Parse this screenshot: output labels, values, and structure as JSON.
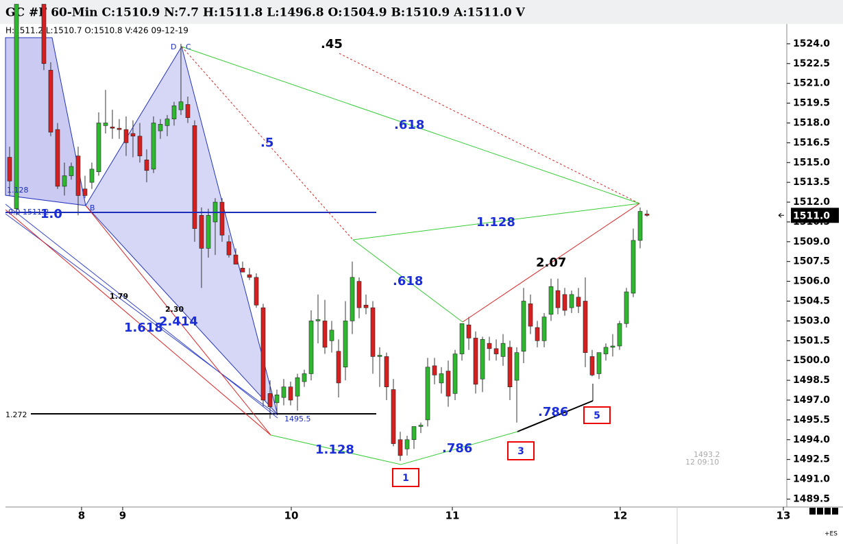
{
  "header": {
    "title": "GC #F 60-Min C:1510.9 N:7.7 H:1511.8 L:1496.8 O:1504.9 B:1510.9 A:1511.0 V",
    "info": "H:1511.2  L:1510.7  O:1510.8  V:426  09-12-19"
  },
  "chart_data": {
    "type": "candlestick",
    "up_color": "#2fb82f",
    "down_color": "#d42020",
    "x": [
      0,
      1,
      5,
      6,
      7,
      8,
      9,
      10,
      11,
      12,
      13,
      14,
      15,
      16,
      17,
      18,
      19,
      20,
      21,
      22,
      23,
      24,
      25,
      26,
      27,
      28,
      29,
      30,
      31,
      32,
      33,
      34,
      35,
      36,
      37,
      38,
      39,
      40,
      41,
      42,
      43,
      44,
      45,
      46,
      47,
      48,
      49,
      50,
      51,
      52,
      53,
      54,
      55,
      56,
      57,
      58,
      59,
      60,
      61,
      62,
      63,
      64,
      65,
      66,
      67,
      68,
      69,
      70,
      71,
      72,
      73,
      74,
      75,
      76,
      77,
      78,
      79,
      80,
      81,
      82,
      83,
      84,
      85,
      86,
      87,
      88,
      89,
      90,
      91,
      92,
      93
    ],
    "open": [
      1515.4,
      1511.5,
      1527,
      1522,
      1517.5,
      1513.2,
      1514,
      1515.5,
      1513,
      1513.5,
      1514.3,
      1517.8,
      1517.7,
      1517.6,
      1517.5,
      1517.2,
      1517,
      1515.2,
      1514.5,
      1517.4,
      1517.8,
      1518.3,
      1519,
      1519.4,
      1517.8,
      1511,
      1508.5,
      1510.5,
      1512,
      1509,
      1508,
      1507,
      1506.5,
      1506.3,
      1504,
      1497.5,
      1496.8,
      1497.2,
      1498,
      1497.3,
      1498.4,
      1499,
      1503,
      1503,
      1501.5,
      1500.7,
      1499.5,
      1503,
      1506,
      1504.2,
      1504,
      1500.3,
      1500.3,
      1497.8,
      1494,
      1493.3,
      1494,
      1495,
      1495.5,
      1499.6,
      1498.3,
      1499.2,
      1497.5,
      1500.5,
      1502.7,
      1501.7,
      1498.6,
      1501.3,
      1500.9,
      1500.3,
      1501,
      1498.5,
      1500.7,
      1504.3,
      1502.5,
      1501.5,
      1503.5,
      1505.3,
      1505,
      1504,
      1504.8,
      1504.5,
      1500.3,
      1499,
      1500.5,
      1501,
      1501.1,
      1502.8,
      1505.1,
      1509.1,
      1511.1
    ],
    "high": [
      1516.2,
      1527,
      1527,
      1522.6,
      1518,
      1515,
      1515,
      1516.2,
      1514,
      1515,
      1518.8,
      1520.5,
      1519,
      1518.3,
      1518.5,
      1518.2,
      1518,
      1516,
      1518.5,
      1518.3,
      1518.6,
      1519.6,
      1524,
      1520,
      1518.2,
      1511.6,
      1511.5,
      1512.3,
      1512.3,
      1509.5,
      1508.5,
      1507.5,
      1507,
      1506.6,
      1504.3,
      1498.5,
      1497.8,
      1498.6,
      1498.4,
      1499,
      1499.3,
      1503.8,
      1505,
      1504.6,
      1503,
      1501.6,
      1504.5,
      1507.5,
      1506.3,
      1505,
      1504.5,
      1501,
      1500.6,
      1498.6,
      1494.6,
      1494.3,
      1494.8,
      1495.3,
      1500.2,
      1500.2,
      1499.5,
      1500,
      1500.8,
      1502.8,
      1503.3,
      1502.2,
      1501.8,
      1501.8,
      1501.6,
      1502,
      1501.5,
      1501,
      1505.5,
      1505,
      1503,
      1503.6,
      1506.2,
      1506.2,
      1505.5,
      1505.3,
      1505.5,
      1506.3,
      1500.8,
      1500.6,
      1501.3,
      1502,
      1503,
      1505.5,
      1510,
      1511.6,
      1511.4
    ],
    "low": [
      1512.5,
      1511,
      1522,
      1517,
      1513,
      1512.5,
      1513.7,
      1511,
      1512.3,
      1513,
      1514,
      1517.2,
      1516.8,
      1516.8,
      1515.5,
      1515.4,
      1515,
      1513.5,
      1514.2,
      1516.8,
      1517,
      1517.8,
      1518.6,
      1518,
      1509,
      1505.5,
      1507.8,
      1508,
      1509,
      1507.8,
      1507.3,
      1506.7,
      1506.1,
      1504,
      1496.5,
      1495.6,
      1496,
      1496.6,
      1496.6,
      1496.2,
      1498,
      1498.5,
      1501.3,
      1500.5,
      1500.6,
      1497.2,
      1498.5,
      1502,
      1503.2,
      1503.5,
      1499,
      1498,
      1497,
      1493.5,
      1492.4,
      1492.8,
      1493.3,
      1494.5,
      1495,
      1498.2,
      1497.5,
      1496.5,
      1497,
      1500,
      1500.8,
      1497.5,
      1497.6,
      1500,
      1500,
      1499.6,
      1497,
      1495.3,
      1499.8,
      1502,
      1501,
      1501,
      1503,
      1503.5,
      1503.4,
      1503.6,
      1503.6,
      1499.5,
      1498.8,
      1498.6,
      1500,
      1500.3,
      1500.8,
      1502.5,
      1504.8,
      1508.5,
      1510.9
    ],
    "close": [
      1513.6,
      1527,
      1522.5,
      1517.3,
      1513.2,
      1514,
      1514.7,
      1512.5,
      1512.5,
      1514.5,
      1518,
      1518,
      1517.6,
      1517.5,
      1516.5,
      1517,
      1515.5,
      1514.4,
      1518,
      1517.9,
      1518.3,
      1519.3,
      1519.6,
      1518.4,
      1510,
      1508.5,
      1511,
      1512,
      1509.5,
      1508,
      1507.3,
      1506.7,
      1506.3,
      1504.2,
      1497,
      1496.5,
      1497.4,
      1498,
      1497,
      1498.7,
      1499,
      1503,
      1503.1,
      1501,
      1502.3,
      1498.3,
      1503,
      1506.3,
      1504,
      1504,
      1500.3,
      1500.4,
      1498,
      1493.7,
      1492.8,
      1494,
      1495,
      1495.1,
      1499.5,
      1498.9,
      1499,
      1497.3,
      1500.5,
      1502.8,
      1501.7,
      1498.2,
      1501.6,
      1500.9,
      1500.5,
      1501.3,
      1498,
      1500.6,
      1504.5,
      1502.6,
      1501.5,
      1503.3,
      1505.6,
      1504,
      1503.8,
      1505,
      1504.1,
      1500.6,
      1498.9,
      1500.6,
      1501,
      1501.1,
      1502.8,
      1505.2,
      1509.1,
      1511.3,
      1511
    ],
    "xlim": [
      -0.6,
      113.4
    ],
    "ylim": [
      1488.9,
      1525.5
    ],
    "xticks": [
      {
        "value": 10.5,
        "label": "8"
      },
      {
        "value": 16.5,
        "label": "9"
      },
      {
        "value": 41.1,
        "label": "10"
      },
      {
        "value": 64.6,
        "label": "11"
      },
      {
        "value": 89.1,
        "label": "12"
      },
      {
        "value": 112.9,
        "label": "13"
      }
    ],
    "yticks": [
      {
        "value": 1524,
        "label": "1524.0"
      },
      {
        "value": 1522.5,
        "label": "1522.5"
      },
      {
        "value": 1521,
        "label": "1521.0"
      },
      {
        "value": 1519.5,
        "label": "1519.5"
      },
      {
        "value": 1518,
        "label": "1518.0"
      },
      {
        "value": 1516.5,
        "label": "1516.5"
      },
      {
        "value": 1515,
        "label": "1515.0"
      },
      {
        "value": 1513.5,
        "label": "1513.5"
      },
      {
        "value": 1512,
        "label": "1512.0"
      },
      {
        "value": 1510.5,
        "label": "1510.5"
      },
      {
        "value": 1509,
        "label": "1509.0"
      },
      {
        "value": 1507.5,
        "label": "1507.5"
      },
      {
        "value": 1506,
        "label": "1506.0"
      },
      {
        "value": 1504.5,
        "label": "1504.5"
      },
      {
        "value": 1503,
        "label": "1503.0"
      },
      {
        "value": 1501.5,
        "label": "1501.5"
      },
      {
        "value": 1500,
        "label": "1500.0"
      },
      {
        "value": 1498.5,
        "label": "1498.5"
      },
      {
        "value": 1497,
        "label": "1497.0"
      },
      {
        "value": 1495.5,
        "label": "1495.5"
      },
      {
        "value": 1494,
        "label": "1494.0"
      },
      {
        "value": 1492.5,
        "label": "1492.5"
      },
      {
        "value": 1491,
        "label": "1491.0"
      },
      {
        "value": 1489.5,
        "label": "1489.5"
      }
    ],
    "last_price": {
      "value": 1511,
      "label": "1511.0"
    },
    "annotations": [
      ".45",
      ".618",
      ".5",
      "1.128",
      ".618",
      "2.07",
      "1.618",
      "2.414",
      "1.79",
      "2.30",
      "1.128",
      "1.0",
      "1.272",
      "1495.5",
      "1.128",
      ".786",
      ".786",
      "1",
      "3",
      "5",
      "D",
      "C",
      "B",
      "0.0  1511.2",
      "1493.2",
      "12  09:10",
      "+ES"
    ]
  }
}
